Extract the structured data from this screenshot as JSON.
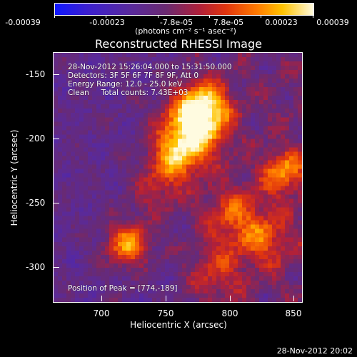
{
  "colorbar": {
    "ticks": [
      "-0.00039",
      "-0.00023",
      "-7.8e-05",
      "7.8e-05",
      "0.00023",
      "0.00039"
    ],
    "units": "(photons cm⁻² s⁻¹ asec⁻²)"
  },
  "title": "Reconstructed RHESSI Image",
  "info": {
    "time_range": "28-Nov-2012 15:26:04.000 to 15:31:50.000",
    "detectors": "Detectors: 3F 5F 6F 7F 8F 9F, Att 0",
    "energy": "Energy Range: 12.0 - 25.0 keV",
    "clean": "Clean     Total counts: 7.43E+03",
    "peak": "Position of Peak = [774,-189]"
  },
  "axes": {
    "xlabel": "Heliocentric X (arcsec)",
    "ylabel": "Heliocentric Y (arcsec)",
    "xticks": [
      "700",
      "750",
      "800",
      "850"
    ],
    "yticks": [
      "-150",
      "-200",
      "-250",
      "-300"
    ]
  },
  "datestamp": "28-Nov-2012 20:02"
}
